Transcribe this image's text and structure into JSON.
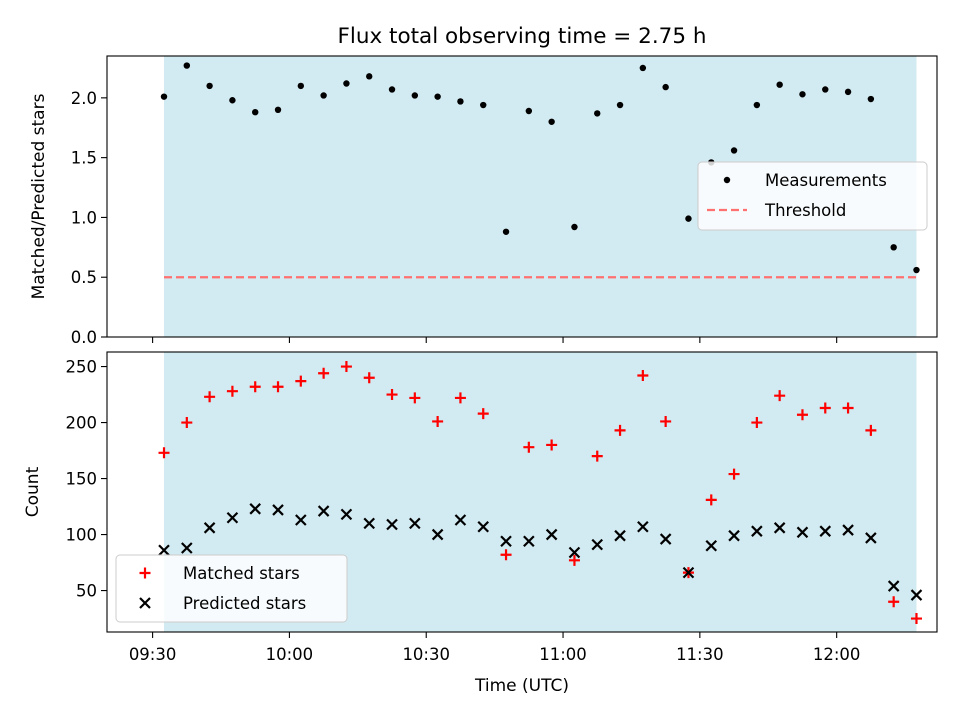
{
  "title": "Flux total observing time = 2.75 h",
  "colors": {
    "band": "#add8e6",
    "measurement": "#000000",
    "threshold": "#ff7070",
    "matched": "#ff0000",
    "predicted": "#000000"
  },
  "chart_data": [
    {
      "type": "scatter",
      "panel": "top",
      "ylabel": "Matched/Predicted stars",
      "ylim": [
        0,
        2.35
      ],
      "yticks": [
        "0.0",
        "0.5",
        "1.0",
        "1.5",
        "2.0"
      ],
      "xlim": [
        "09:20",
        "12:22"
      ],
      "observing_band": [
        "09:32.5",
        "12:17.5"
      ],
      "threshold": 0.5,
      "legend": {
        "placement": "center-right",
        "entries": [
          "Measurements",
          "Threshold"
        ]
      },
      "series": [
        {
          "name": "Measurements",
          "x": [
            "09:32.5",
            "09:37.5",
            "09:42.5",
            "09:47.5",
            "09:52.5",
            "09:57.5",
            "10:02.5",
            "10:07.5",
            "10:12.5",
            "10:17.5",
            "10:22.5",
            "10:27.5",
            "10:32.5",
            "10:37.5",
            "10:42.5",
            "10:47.5",
            "10:52.5",
            "10:57.5",
            "11:02.5",
            "11:07.5",
            "11:12.5",
            "11:17.5",
            "11:22.5",
            "11:27.5",
            "11:32.5",
            "11:37.5",
            "11:42.5",
            "11:47.5",
            "11:52.5",
            "11:57.5",
            "12:02.5",
            "12:07.5",
            "12:12.5",
            "12:17.5"
          ],
          "values": [
            2.01,
            2.27,
            2.1,
            1.98,
            1.88,
            1.9,
            2.1,
            2.02,
            2.12,
            2.18,
            2.07,
            2.02,
            2.01,
            1.97,
            1.94,
            0.88,
            1.89,
            1.8,
            0.92,
            1.87,
            1.94,
            2.25,
            2.09,
            0.99,
            1.46,
            1.56,
            1.94,
            2.11,
            2.03,
            2.07,
            2.05,
            1.99,
            0.75,
            0.56
          ]
        }
      ]
    },
    {
      "type": "scatter",
      "panel": "bottom",
      "xlabel": "Time (UTC)",
      "ylabel": "Count",
      "ylim": [
        13,
        263
      ],
      "yticks": [
        "50",
        "100",
        "150",
        "200",
        "250"
      ],
      "xlim": [
        "09:20",
        "12:22"
      ],
      "xticks": [
        "09:30",
        "10:00",
        "10:30",
        "11:00",
        "11:30",
        "12:00"
      ],
      "observing_band": [
        "09:32.5",
        "12:17.5"
      ],
      "legend": {
        "placement": "lower-left",
        "entries": [
          "Matched stars",
          "Predicted stars"
        ]
      },
      "series": [
        {
          "name": "Matched stars",
          "values": [
            173,
            200,
            223,
            228,
            232,
            232,
            237,
            244,
            250,
            240,
            225,
            222,
            201,
            222,
            208,
            82,
            178,
            180,
            77,
            170,
            193,
            242,
            201,
            66,
            131,
            154,
            200,
            224,
            207,
            213,
            213,
            193,
            40,
            25
          ]
        },
        {
          "name": "Predicted stars",
          "values": [
            86,
            88,
            106,
            115,
            123,
            122,
            113,
            121,
            118,
            110,
            109,
            110,
            100,
            113,
            107,
            94,
            94,
            100,
            84,
            91,
            99,
            107,
            96,
            66,
            90,
            99,
            103,
            106,
            102,
            103,
            104,
            97,
            54,
            46
          ]
        }
      ]
    }
  ]
}
